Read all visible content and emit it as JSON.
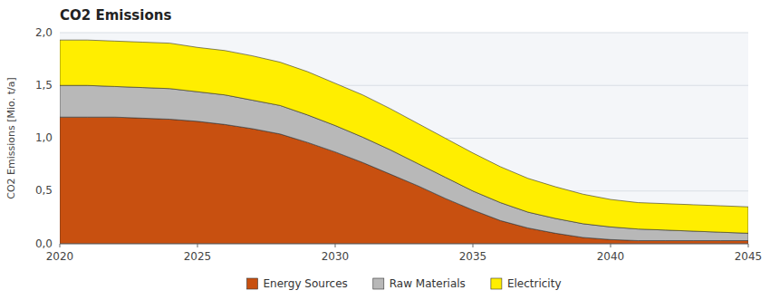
{
  "chart_data": {
    "type": "area",
    "stacked": true,
    "title": "CO2 Emissions",
    "y_label": "CO2 Emissions [Mio. t/a]",
    "x": [
      2020,
      2021,
      2022,
      2023,
      2024,
      2025,
      2026,
      2027,
      2028,
      2029,
      2030,
      2031,
      2032,
      2033,
      2034,
      2035,
      2036,
      2037,
      2038,
      2039,
      2040,
      2041,
      2042,
      2043,
      2044,
      2045
    ],
    "series": [
      {
        "name": "Energy Sources",
        "color": "#c85010",
        "values": [
          1.2,
          1.2,
          1.2,
          1.19,
          1.18,
          1.16,
          1.13,
          1.09,
          1.04,
          0.96,
          0.87,
          0.77,
          0.66,
          0.55,
          0.43,
          0.32,
          0.22,
          0.15,
          0.1,
          0.06,
          0.04,
          0.03,
          0.03,
          0.03,
          0.03,
          0.03
        ]
      },
      {
        "name": "Raw Materials",
        "color": "#b8b8b8",
        "values": [
          0.3,
          0.3,
          0.29,
          0.29,
          0.29,
          0.28,
          0.28,
          0.27,
          0.27,
          0.26,
          0.25,
          0.24,
          0.23,
          0.21,
          0.2,
          0.18,
          0.17,
          0.15,
          0.14,
          0.13,
          0.12,
          0.11,
          0.1,
          0.09,
          0.08,
          0.07
        ]
      },
      {
        "name": "Electricity",
        "color": "#ffee00",
        "values": [
          0.43,
          0.43,
          0.43,
          0.43,
          0.43,
          0.42,
          0.42,
          0.42,
          0.41,
          0.41,
          0.4,
          0.4,
          0.39,
          0.38,
          0.37,
          0.36,
          0.34,
          0.32,
          0.3,
          0.28,
          0.26,
          0.25,
          0.25,
          0.25,
          0.25,
          0.25
        ]
      }
    ],
    "xlim": [
      2020,
      2045
    ],
    "xticks": [
      2020,
      2025,
      2030,
      2035,
      2040,
      2045
    ],
    "ylim": [
      0,
      2.0
    ],
    "yticks": [
      {
        "value": 0,
        "label": "0,0"
      },
      {
        "value": 0.5,
        "label": "0,5"
      },
      {
        "value": 1.0,
        "label": "1,0"
      },
      {
        "value": 1.5,
        "label": "1,5"
      },
      {
        "value": 2.0,
        "label": "2,0"
      }
    ],
    "grid": true,
    "legend": "bottom"
  }
}
